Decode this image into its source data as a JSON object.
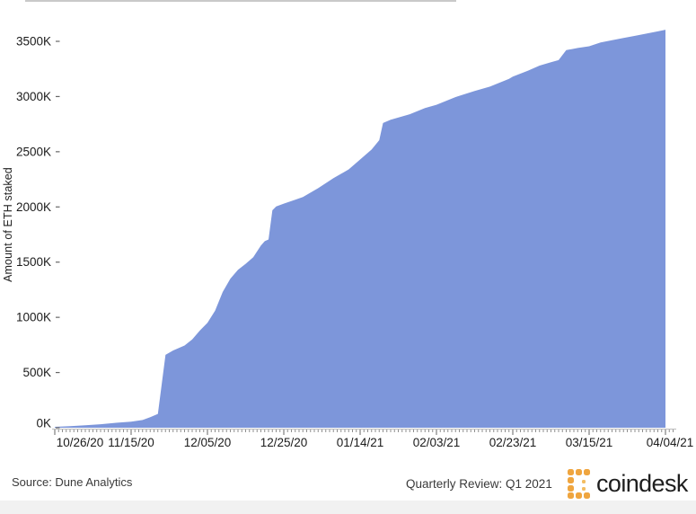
{
  "chart_data": {
    "type": "area",
    "title": "",
    "ylabel": "Amount of ETH staked",
    "xlabel": "",
    "x_tick_labels": [
      "10/26/20",
      "11/15/20",
      "12/05/20",
      "12/25/20",
      "01/14/21",
      "02/03/21",
      "02/23/21",
      "03/15/21",
      "04/04/21"
    ],
    "y_tick_labels": [
      "0K",
      "500K",
      "1000K",
      "1500K",
      "2000K",
      "2500K",
      "3000K",
      "3500K"
    ],
    "y_tick_values": [
      0,
      500,
      1000,
      1500,
      2000,
      2500,
      3000,
      3500
    ],
    "axis": {
      "x_range_days": 160,
      "x_tick_interval_days": 20,
      "ylim_k": [
        0,
        3650
      ],
      "grid": false,
      "legend": false
    },
    "unit": "thousand ETH",
    "fill_color": "#7d96da",
    "tick_color": "#8f8f8f",
    "points_day_valueK": [
      [
        0,
        8
      ],
      [
        4,
        14
      ],
      [
        8,
        22
      ],
      [
        12,
        32
      ],
      [
        16,
        45
      ],
      [
        20,
        55
      ],
      [
        23,
        70
      ],
      [
        25,
        95
      ],
      [
        27,
        125
      ],
      [
        28,
        390
      ],
      [
        29,
        660
      ],
      [
        31,
        700
      ],
      [
        34,
        745
      ],
      [
        36,
        800
      ],
      [
        38,
        880
      ],
      [
        40,
        950
      ],
      [
        42,
        1060
      ],
      [
        44,
        1230
      ],
      [
        46,
        1350
      ],
      [
        48,
        1430
      ],
      [
        50,
        1485
      ],
      [
        52,
        1545
      ],
      [
        54,
        1650
      ],
      [
        55,
        1690
      ],
      [
        56,
        1705
      ],
      [
        57,
        1970
      ],
      [
        58,
        2005
      ],
      [
        60,
        2030
      ],
      [
        63,
        2065
      ],
      [
        65,
        2090
      ],
      [
        69,
        2170
      ],
      [
        73,
        2260
      ],
      [
        77,
        2340
      ],
      [
        80,
        2430
      ],
      [
        83,
        2520
      ],
      [
        85,
        2605
      ],
      [
        86,
        2760
      ],
      [
        88,
        2790
      ],
      [
        93,
        2840
      ],
      [
        97,
        2895
      ],
      [
        100,
        2925
      ],
      [
        105,
        2995
      ],
      [
        110,
        3050
      ],
      [
        114,
        3090
      ],
      [
        119,
        3160
      ],
      [
        120,
        3180
      ],
      [
        124,
        3235
      ],
      [
        127,
        3280
      ],
      [
        130,
        3310
      ],
      [
        132,
        3330
      ],
      [
        134,
        3420
      ],
      [
        137,
        3440
      ],
      [
        140,
        3455
      ],
      [
        143,
        3490
      ],
      [
        146,
        3510
      ],
      [
        149,
        3530
      ],
      [
        152,
        3550
      ],
      [
        155,
        3570
      ],
      [
        158,
        3590
      ],
      [
        160,
        3605
      ]
    ]
  },
  "footer": {
    "source": "Source: Dune Analytics",
    "review": "Quarterly Review: Q1 2021",
    "brand": "coindesk"
  }
}
